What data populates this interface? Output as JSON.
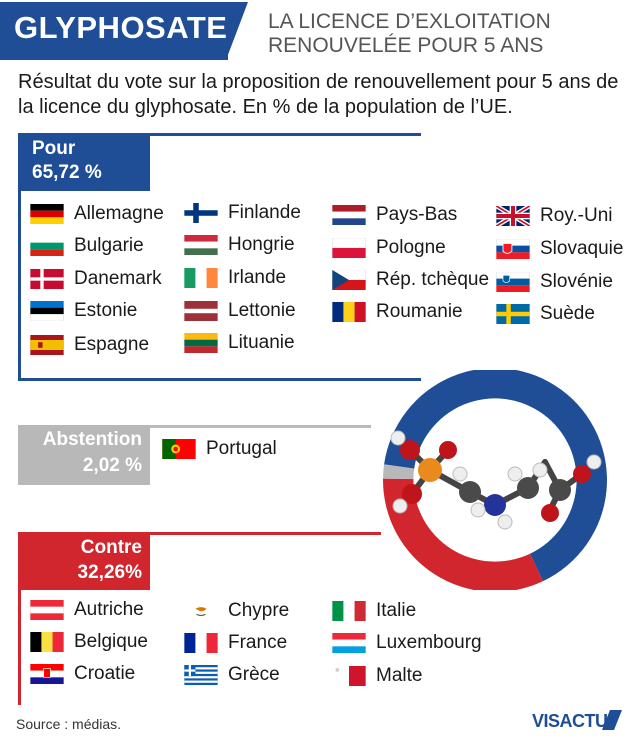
{
  "header": {
    "title": "GLYPHOSATE",
    "subtitle_line1": "LA LICENCE D’EXLOITATION",
    "subtitle_line2": "RENOUVELÉE POUR 5 ANS"
  },
  "intro": "Résultat du vote sur la proposition de renouvellement pour 5 ans de la licence du glyphosate. En % de la population de l’UE.",
  "groups": {
    "pour": {
      "label": "Pour",
      "value_label": "65,72 %",
      "color": "#1f4e96"
    },
    "abstention": {
      "label": "Abstention",
      "value_label": "2,02 %",
      "color": "#b8b8b8"
    },
    "contre": {
      "label": "Contre",
      "value_label": "32,26%",
      "color": "#d1262e"
    }
  },
  "countries": {
    "pour": [
      "Allemagne",
      "Bulgarie",
      "Danemark",
      "Estonie",
      "Espagne",
      "Finlande",
      "Hongrie",
      "Irlande",
      "Lettonie",
      "Lituanie",
      "Pays-Bas",
      "Pologne",
      "Rép. tchèque",
      "Roumanie",
      "Roy.-Uni",
      "Slovaquie",
      "Slovénie",
      "Suède"
    ],
    "abstention": [
      "Portugal"
    ],
    "contre": [
      "Autriche",
      "Belgique",
      "Croatie",
      "Chypre",
      "France",
      "Grèce",
      "Italie",
      "Luxembourg",
      "Malte"
    ]
  },
  "chart_data": {
    "type": "pie",
    "title": "",
    "categories": [
      "Pour",
      "Abstention",
      "Contre"
    ],
    "values": [
      65.72,
      2.02,
      32.26
    ],
    "unit": "% de la population de l’UE",
    "colors": [
      "#1f4e96",
      "#b8b8b8",
      "#d1262e"
    ]
  },
  "footer": {
    "source": "Source : médias.",
    "logo_text": "VISACTU"
  }
}
